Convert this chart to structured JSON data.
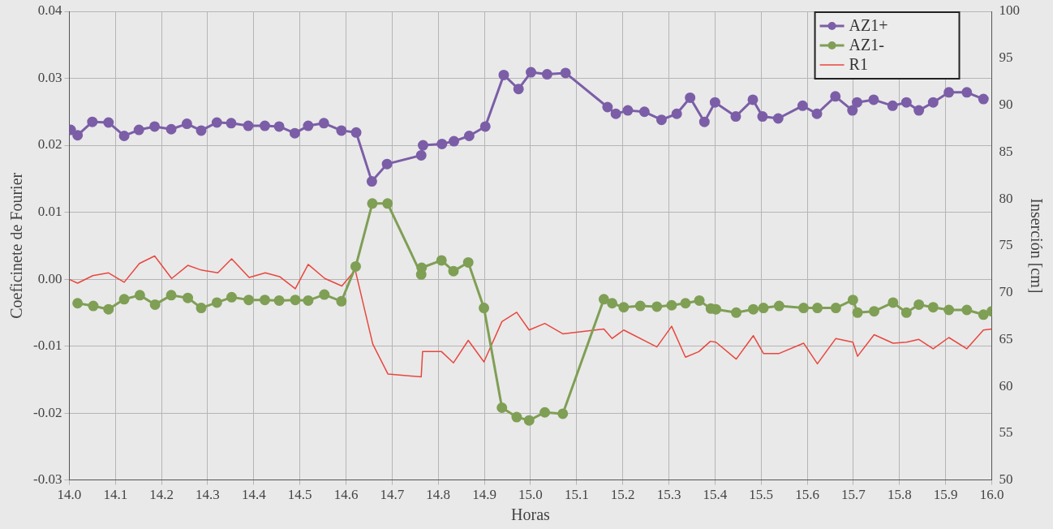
{
  "chart_data": {
    "type": "line",
    "xlabel": "Horas",
    "ylabel": "Coeficinete de Fourier",
    "y2label": "Inserción [cm]",
    "xlim": [
      14,
      16
    ],
    "xticks": [
      {
        "value": 14,
        "label": "14.0"
      },
      14.1,
      14.2,
      14.3,
      14.4,
      14.5,
      14.6,
      14.7,
      14.8,
      14.9,
      {
        "value": 15,
        "label": "15.0"
      },
      15.1,
      15.2,
      15.3,
      15.4,
      15.5,
      15.6,
      15.7,
      15.8,
      15.9,
      {
        "value": 16,
        "label": "16.0"
      }
    ],
    "ylim": [
      -0.03,
      0.04
    ],
    "yticks": [
      {
        "value": -0.03,
        "label": "-0.03"
      },
      {
        "value": -0.02,
        "label": "-0.02"
      },
      {
        "value": -0.01,
        "label": "-0.01"
      },
      {
        "value": 0,
        "label": "0.00"
      },
      {
        "value": 0.01,
        "label": "0.01"
      },
      {
        "value": 0.02,
        "label": "0.02"
      },
      {
        "value": 0.03,
        "label": "0.03"
      },
      {
        "value": 0.04,
        "label": "0.04"
      }
    ],
    "y2lim": [
      50,
      100
    ],
    "y2ticks": [
      50,
      55,
      60,
      65,
      70,
      75,
      80,
      85,
      90,
      95,
      100
    ],
    "grid": true,
    "legend": "top right",
    "series": [
      {
        "name": "AZ1+",
        "color": "#7b5ea7",
        "marker": "circle",
        "x": [
          14.003,
          14.018,
          14.05,
          14.085,
          14.119,
          14.151,
          14.185,
          14.221,
          14.255,
          14.286,
          14.32,
          14.351,
          14.388,
          14.424,
          14.455,
          14.489,
          14.518,
          14.552,
          14.59,
          14.622,
          14.656,
          14.689,
          14.763,
          14.767,
          14.808,
          14.834,
          14.867,
          14.902,
          14.942,
          14.974,
          15.001,
          15.036,
          15.076,
          15.167,
          15.185,
          15.211,
          15.247,
          15.284,
          15.317,
          15.346,
          15.377,
          15.4,
          15.445,
          15.482,
          15.503,
          15.537,
          15.59,
          15.621,
          15.661,
          15.698,
          15.708,
          15.744,
          15.785,
          15.815,
          15.842,
          15.873,
          15.907,
          15.946,
          15.982
        ],
        "values": [
          0.0223,
          0.0215,
          0.0235,
          0.0234,
          0.0214,
          0.0223,
          0.0228,
          0.0224,
          0.0232,
          0.0222,
          0.0234,
          0.0233,
          0.0229,
          0.0229,
          0.0228,
          0.0218,
          0.0229,
          0.0233,
          0.0222,
          0.0219,
          0.0146,
          0.0172,
          0.0185,
          0.02,
          0.0202,
          0.0206,
          0.0214,
          0.0228,
          0.0305,
          0.0284,
          0.0309,
          0.0306,
          0.0308,
          0.0257,
          0.0247,
          0.0252,
          0.025,
          0.0238,
          0.0247,
          0.0271,
          0.0235,
          0.0264,
          0.0243,
          0.0268,
          0.0243,
          0.024,
          0.0259,
          0.0247,
          0.0273,
          0.0252,
          0.0264,
          0.0268,
          0.0259,
          0.0264,
          0.0252,
          0.0264,
          0.0279,
          0.0279,
          0.0269
        ]
      },
      {
        "name": "AZ1-",
        "color": "#7f9f55",
        "marker": "circle",
        "x": [
          14.018,
          14.052,
          14.085,
          14.119,
          14.153,
          14.186,
          14.221,
          14.257,
          14.286,
          14.32,
          14.352,
          14.389,
          14.424,
          14.455,
          14.49,
          14.518,
          14.553,
          14.59,
          14.621,
          14.657,
          14.69,
          14.763,
          14.764,
          14.807,
          14.833,
          14.865,
          14.899,
          14.938,
          14.97,
          14.997,
          15.031,
          15.07,
          15.159,
          15.177,
          15.202,
          15.238,
          15.274,
          15.306,
          15.336,
          15.366,
          15.391,
          15.402,
          15.446,
          15.483,
          15.505,
          15.539,
          15.592,
          15.622,
          15.662,
          15.699,
          15.709,
          15.745,
          15.786,
          15.815,
          15.842,
          15.873,
          15.907,
          15.946,
          15.982,
          16.0
        ],
        "values": [
          -0.0036,
          -0.004,
          -0.0045,
          -0.003,
          -0.0024,
          -0.0038,
          -0.0024,
          -0.0028,
          -0.0043,
          -0.0035,
          -0.0027,
          -0.0031,
          -0.0031,
          -0.0032,
          -0.0031,
          -0.0032,
          -0.0023,
          -0.0033,
          0.0019,
          0.0113,
          0.0113,
          0.0007,
          0.0017,
          0.0028,
          0.0012,
          0.0025,
          -0.0043,
          -0.0192,
          -0.0206,
          -0.0211,
          -0.0199,
          -0.0201,
          -0.003,
          -0.0036,
          -0.0042,
          -0.004,
          -0.0041,
          -0.0039,
          -0.0036,
          -0.0032,
          -0.0044,
          -0.0045,
          -0.005,
          -0.0045,
          -0.0043,
          -0.004,
          -0.0043,
          -0.0043,
          -0.0043,
          -0.0031,
          -0.005,
          -0.0048,
          -0.0035,
          -0.005,
          -0.0038,
          -0.0042,
          -0.0046,
          -0.0046,
          -0.0053,
          -0.0048
        ]
      },
      {
        "name": "R1",
        "color": "#e8473f",
        "marker": "none",
        "axis": "y2",
        "x": [
          14.0,
          14.018,
          14.051,
          14.085,
          14.119,
          14.152,
          14.185,
          14.222,
          14.257,
          14.286,
          14.322,
          14.352,
          14.39,
          14.425,
          14.456,
          14.49,
          14.518,
          14.554,
          14.591,
          14.62,
          14.658,
          14.691,
          14.763,
          14.766,
          14.807,
          14.833,
          14.865,
          14.899,
          14.938,
          14.97,
          14.997,
          15.031,
          15.07,
          15.159,
          15.177,
          15.202,
          15.274,
          15.306,
          15.336,
          15.365,
          15.39,
          15.402,
          15.446,
          15.483,
          15.505,
          15.539,
          15.592,
          15.622,
          15.662,
          15.699,
          15.709,
          15.745,
          15.786,
          15.815,
          15.842,
          15.873,
          15.907,
          15.946,
          15.982,
          16.0
        ],
        "values": [
          71.4,
          71.0,
          71.8,
          72.1,
          71.1,
          73.1,
          73.9,
          71.5,
          72.9,
          72.4,
          72.1,
          73.6,
          71.6,
          72.1,
          71.7,
          70.4,
          73.0,
          71.5,
          70.7,
          72.4,
          64.5,
          61.3,
          61.0,
          63.7,
          63.7,
          62.5,
          64.9,
          62.6,
          66.9,
          67.9,
          66.0,
          66.7,
          65.6,
          66.1,
          65.1,
          66.0,
          64.2,
          66.4,
          63.1,
          63.7,
          64.8,
          64.7,
          62.9,
          65.4,
          63.5,
          63.5,
          64.6,
          62.4,
          65.1,
          64.7,
          63.2,
          65.5,
          64.6,
          64.7,
          65.0,
          64.0,
          65.2,
          64.0,
          66.0,
          66.1
        ]
      }
    ]
  }
}
